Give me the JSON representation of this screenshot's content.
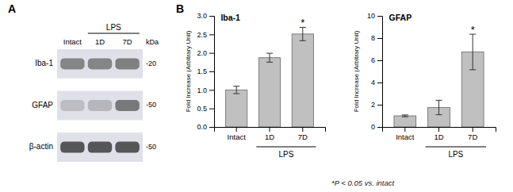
{
  "panel_labels": [
    "A",
    "B"
  ],
  "blot": {
    "type": "blot",
    "row_labels": [
      "Iba-1",
      "GFAP",
      "β-actin"
    ],
    "kda_labels": [
      "-20",
      "-50",
      "-50"
    ],
    "col_headers": [
      "Intact",
      "1D",
      "7D"
    ],
    "group_label": "LPS",
    "kda_header": "kDa"
  },
  "chart_data": [
    {
      "type": "bar",
      "title": "Iba-1",
      "categories": [
        "Intact",
        "1D",
        "7D"
      ],
      "group_label": "LPS",
      "values": [
        1.0,
        1.87,
        2.51
      ],
      "errors": [
        0.1,
        0.12,
        0.18
      ],
      "color": "#c0c0c0",
      "ylabel": "Fold Increase (Arbitrary Unit)",
      "ylim": [
        0,
        3.0
      ],
      "yticks": [
        {
          "value": 0.0,
          "label": "0.0"
        },
        0.5,
        {
          "value": 1.0,
          "label": "1.0"
        },
        1.5,
        {
          "value": 2.0,
          "label": "2.0"
        },
        2.5,
        {
          "value": 3.0,
          "label": "3.0"
        }
      ],
      "annotations": [
        {
          "category": "7D",
          "text": "*"
        }
      ]
    },
    {
      "type": "bar",
      "title": "GFAP",
      "categories": [
        "Intact",
        "1D",
        "7D"
      ],
      "group_label": "LPS",
      "values": [
        1.0,
        1.75,
        6.75
      ],
      "errors": [
        0.08,
        0.65,
        1.6
      ],
      "color": "#c0c0c0",
      "ylabel": "Fold Increase (Arbitrary Unit)",
      "ylim": [
        0,
        10
      ],
      "yticks": [
        0,
        2,
        4,
        6,
        8,
        10
      ],
      "annotations": [
        {
          "category": "7D",
          "text": "*"
        }
      ]
    }
  ],
  "footnote": "*P < 0.05 vs. intact"
}
